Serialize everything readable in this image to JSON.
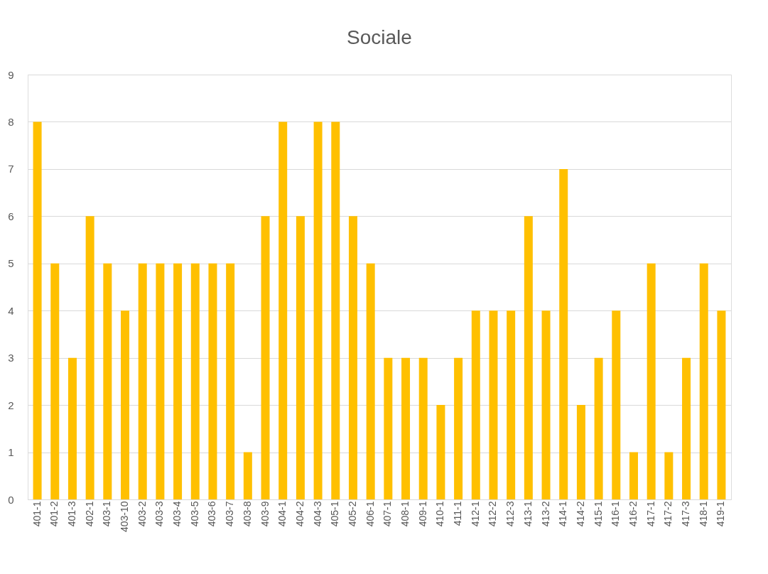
{
  "chart_data": {
    "type": "bar",
    "title": "Sociale",
    "categories": [
      "401-1",
      "401-2",
      "401-3",
      "402-1",
      "403-1",
      "403-10",
      "403-2",
      "403-3",
      "403-4",
      "403-5",
      "403-6",
      "403-7",
      "403-8",
      "403-9",
      "404-1",
      "404-2",
      "404-3",
      "405-1",
      "405-2",
      "406-1",
      "407-1",
      "408-1",
      "409-1",
      "410-1",
      "411-1",
      "412-1",
      "412-2",
      "412-3",
      "413-1",
      "413-2",
      "414-1",
      "414-2",
      "415-1",
      "416-1",
      "416-2",
      "417-1",
      "417-2",
      "417-3",
      "418-1",
      "419-1"
    ],
    "values": [
      8,
      5,
      3,
      6,
      5,
      4,
      5,
      5,
      5,
      5,
      5,
      5,
      1,
      6,
      8,
      6,
      8,
      8,
      6,
      5,
      3,
      3,
      3,
      2,
      3,
      4,
      4,
      4,
      6,
      4,
      7,
      2,
      3,
      4,
      1,
      5,
      1,
      3,
      5,
      4
    ],
    "color": "#ffc000",
    "ylim": [
      0,
      9
    ],
    "yticks": [
      0,
      1,
      2,
      3,
      4,
      5,
      6,
      7,
      8,
      9
    ],
    "grid": "y"
  }
}
